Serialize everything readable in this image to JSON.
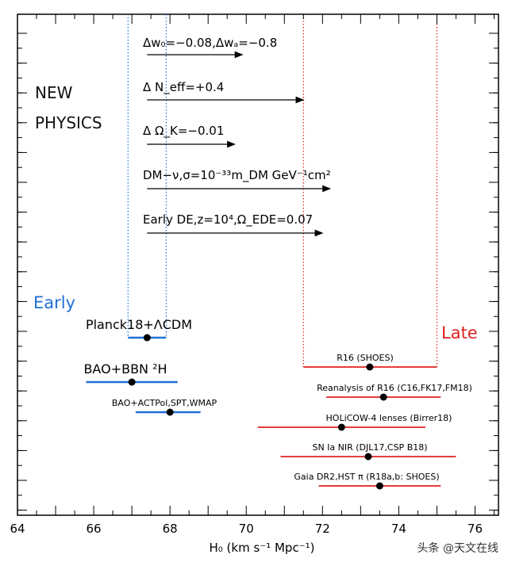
{
  "chart_data": {
    "type": "scatter",
    "xlabel": "H₀ (km s⁻¹ Mpc⁻¹)",
    "xlim": [
      64,
      77
    ],
    "x_ticks": [
      64,
      66,
      68,
      70,
      72,
      74,
      76
    ],
    "colors": {
      "early": "#1f6fd6",
      "late": "#e02020",
      "arrow": "#000000"
    },
    "side_labels": {
      "early": "Early",
      "late": "Late",
      "new_physics_line1": "NEW",
      "new_physics_line2": "PHYSICS"
    },
    "early_band": [
      66.9,
      67.9
    ],
    "late_band": [
      71.5,
      75.0
    ],
    "early_points": [
      {
        "label": "Planck18+ΛCDM",
        "value": 67.4,
        "low": 66.9,
        "high": 67.9
      },
      {
        "label": "BAO+BBN ²H",
        "value": 67.0,
        "low": 65.8,
        "high": 68.2
      },
      {
        "label": "BAO+ACTPol,SPT,WMAP",
        "value": 68.0,
        "low": 67.1,
        "high": 68.8
      }
    ],
    "late_points": [
      {
        "label": "R16 (SHOES)",
        "value": 73.24,
        "low": 71.5,
        "high": 75.0
      },
      {
        "label": "Reanalysis of R16 (C16,FK17,FM18)",
        "value": 73.6,
        "low": 72.1,
        "high": 75.1
      },
      {
        "label": "HOLiCOW-4 lenses (Birrer18)",
        "value": 72.5,
        "low": 70.3,
        "high": 74.7
      },
      {
        "label": "SN Ia NIR (DJL17,CSP B18)",
        "value": 73.2,
        "low": 70.9,
        "high": 75.5
      },
      {
        "label": "Gaia DR2,HST π (R18a,b: SHOES)",
        "value": 73.5,
        "low": 71.9,
        "high": 75.1
      }
    ],
    "new_physics": [
      {
        "label": "Δw₀=−0.08,Δwₐ=−0.8",
        "from": 67.4,
        "to": 69.9
      },
      {
        "label": "Δ N_eff=+0.4",
        "from": 67.4,
        "to": 71.5
      },
      {
        "label": "Δ Ω_K=−0.01",
        "from": 67.4,
        "to": 69.7
      },
      {
        "label": "DM−ν,σ=10⁻³³m_DM GeV⁻¹cm²",
        "from": 67.4,
        "to": 72.2
      },
      {
        "label": "Early DE,z=10⁴,Ω_EDE=0.07",
        "from": 67.4,
        "to": 72.0
      }
    ]
  },
  "watermark": "头条 @天文在线"
}
